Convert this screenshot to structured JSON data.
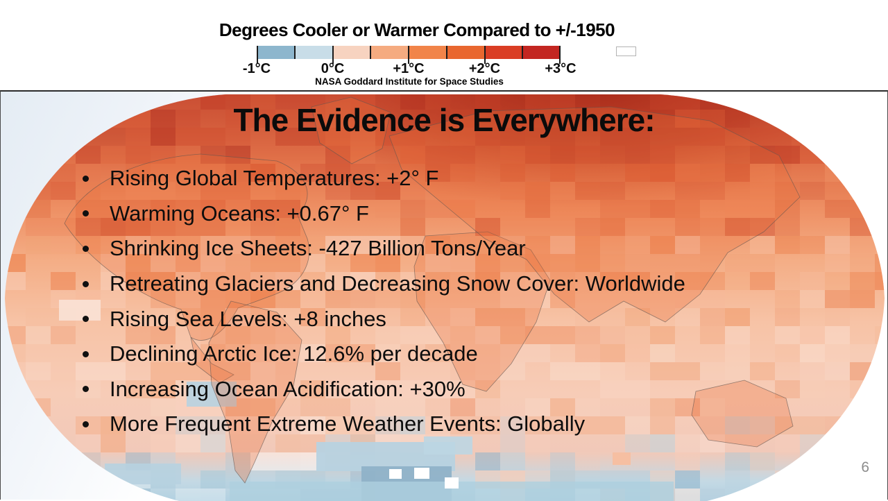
{
  "legend": {
    "title": "Degrees Cooler or Warmer Compared to +/-1950",
    "credit": "NASA Goddard Institute for Space Studies",
    "tick_labels": [
      "-1°C",
      "0°C",
      "+1°C",
      "+2°C",
      "+3°C"
    ],
    "segment_colors": [
      "#8db6cd",
      "#c8dde8",
      "#f7d3c0",
      "#f5ab80",
      "#f18449",
      "#e9672f",
      "#da3d24",
      "#c32621"
    ]
  },
  "slide": {
    "title": "The Evidence is Everywhere:",
    "bullets": [
      "Rising Global Temperatures: +2° F",
      "Warming Oceans: +0.67° F",
      "Shrinking Ice Sheets: -427 Billion Tons/Year",
      "Retreating Glaciers and Decreasing Snow Cover: Worldwide",
      "Rising Sea Levels: +8 inches",
      "Declining Arctic Ice: 12.6% per decade",
      "Increasing Ocean Acidification: +30%",
      "More Frequent Extreme Weather Events: Globally"
    ],
    "page_number": "6"
  },
  "map": {
    "palette_bands": [
      {
        "until": 95,
        "colors": [
          "#b23122",
          "#c23d27",
          "#cf4b2d",
          "#da5b36",
          "#c23d27"
        ]
      },
      {
        "until": 185,
        "colors": [
          "#df693f",
          "#e87a4e",
          "#d65430",
          "#ef9064",
          "#ca452a"
        ]
      },
      {
        "until": 320,
        "colors": [
          "#f2a478",
          "#f6ba9a",
          "#ee8450",
          "#f9d5c2",
          "#ec7a44"
        ]
      },
      {
        "until": 450,
        "colors": [
          "#f6bb9c",
          "#f9d7c6",
          "#f2a478",
          "#fae2d4",
          "#ef9468"
        ]
      },
      {
        "until": 520,
        "colors": [
          "#f8cfbb",
          "#fbe3d6",
          "#f4ad85",
          "#bcd6e3",
          "#f2a478"
        ]
      },
      {
        "until": 999,
        "colors": [
          "#b9d3e1",
          "#a6c8d9",
          "#f8cdb8",
          "#8fb3cb",
          "#ffffff"
        ]
      }
    ]
  }
}
